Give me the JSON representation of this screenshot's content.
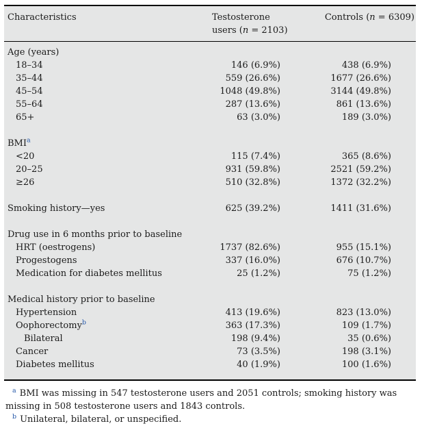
{
  "table": {
    "columns": {
      "characteristics": "Characteristics",
      "testosterone": {
        "line1": "Testosterone",
        "line2_prefix": "users (",
        "n": "n",
        "line2_suffix": " = 2103)"
      },
      "controls": {
        "prefix": "Controls (",
        "n": "n",
        "suffix": " = 6309)"
      }
    },
    "rows": [
      {
        "label": "Age (years)",
        "indent": 0,
        "t": "",
        "c": "",
        "gap": false
      },
      {
        "label": "18–34",
        "indent": 1,
        "t": "146 (6.9%)",
        "c": "438 (6.9%)",
        "gap": false
      },
      {
        "label": "35–44",
        "indent": 1,
        "t": "559 (26.6%)",
        "c": "1677 (26.6%)",
        "gap": false
      },
      {
        "label": "45–54",
        "indent": 1,
        "t": "1048 (49.8%)",
        "c": "3144 (49.8%)",
        "gap": false
      },
      {
        "label": "55–64",
        "indent": 1,
        "t": "287 (13.6%)",
        "c": "861 (13.6%)",
        "gap": false
      },
      {
        "label": "65+",
        "indent": 1,
        "t": "63 (3.0%)",
        "c": "189 (3.0%)",
        "gap": false
      },
      {
        "label": "BMI",
        "sup": "a",
        "indent": 0,
        "t": "",
        "c": "",
        "gap": true
      },
      {
        "label": "<20",
        "indent": 1,
        "t": "115 (7.4%)",
        "c": "365 (8.6%)",
        "gap": false
      },
      {
        "label": "20–25",
        "indent": 1,
        "t": "931 (59.8%)",
        "c": "2521 (59.2%)",
        "gap": false
      },
      {
        "label": "≥26",
        "indent": 1,
        "t": "510 (32.8%)",
        "c": "1372 (32.2%)",
        "gap": false
      },
      {
        "label": "Smoking history—yes",
        "indent": 0,
        "t": "625 (39.2%)",
        "c": "1411 (31.6%)",
        "gap": true
      },
      {
        "label": "Drug use in 6 months prior to baseline",
        "indent": 0,
        "t": "",
        "c": "",
        "gap": true
      },
      {
        "label": "HRT (oestrogens)",
        "indent": 1,
        "t": "1737 (82.6%)",
        "c": "955 (15.1%)",
        "gap": false
      },
      {
        "label": "Progestogens",
        "indent": 1,
        "t": "337 (16.0%)",
        "c": "676 (10.7%)",
        "gap": false
      },
      {
        "label": "Medication for diabetes mellitus",
        "indent": 1,
        "t": "25 (1.2%)",
        "c": "75 (1.2%)",
        "gap": false
      },
      {
        "label": "Medical history prior to baseline",
        "indent": 0,
        "t": "",
        "c": "",
        "gap": true
      },
      {
        "label": "Hypertension",
        "indent": 1,
        "t": "413 (19.6%)",
        "c": "823 (13.0%)",
        "gap": false
      },
      {
        "label": "Oophorectomy",
        "sup": "b",
        "indent": 1,
        "t": "363 (17.3%)",
        "c": "109 (1.7%)",
        "gap": false
      },
      {
        "label": "Bilateral",
        "indent": 2,
        "t": "198 (9.4%)",
        "c": "35 (0.6%)",
        "gap": false
      },
      {
        "label": "Cancer",
        "indent": 1,
        "t": "73 (3.5%)",
        "c": "198 (3.1%)",
        "gap": false
      },
      {
        "label": "Diabetes mellitus",
        "indent": 1,
        "t": "40 (1.9%)",
        "c": "100 (1.6%)",
        "gap": false
      }
    ]
  },
  "footnotes": [
    {
      "marker": "a",
      "text": "BMI was missing in 547 testosterone users and 2051 controls; smoking history was missing in 508 testosterone users and 1843 controls."
    },
    {
      "marker": "b",
      "text": "Unilateral, bilateral, or unspecified."
    }
  ],
  "colors": {
    "table_background": "#e5e6e6",
    "text": "#1a1a1a",
    "rule": "#000000",
    "superscript_marker": "#2356a8"
  }
}
